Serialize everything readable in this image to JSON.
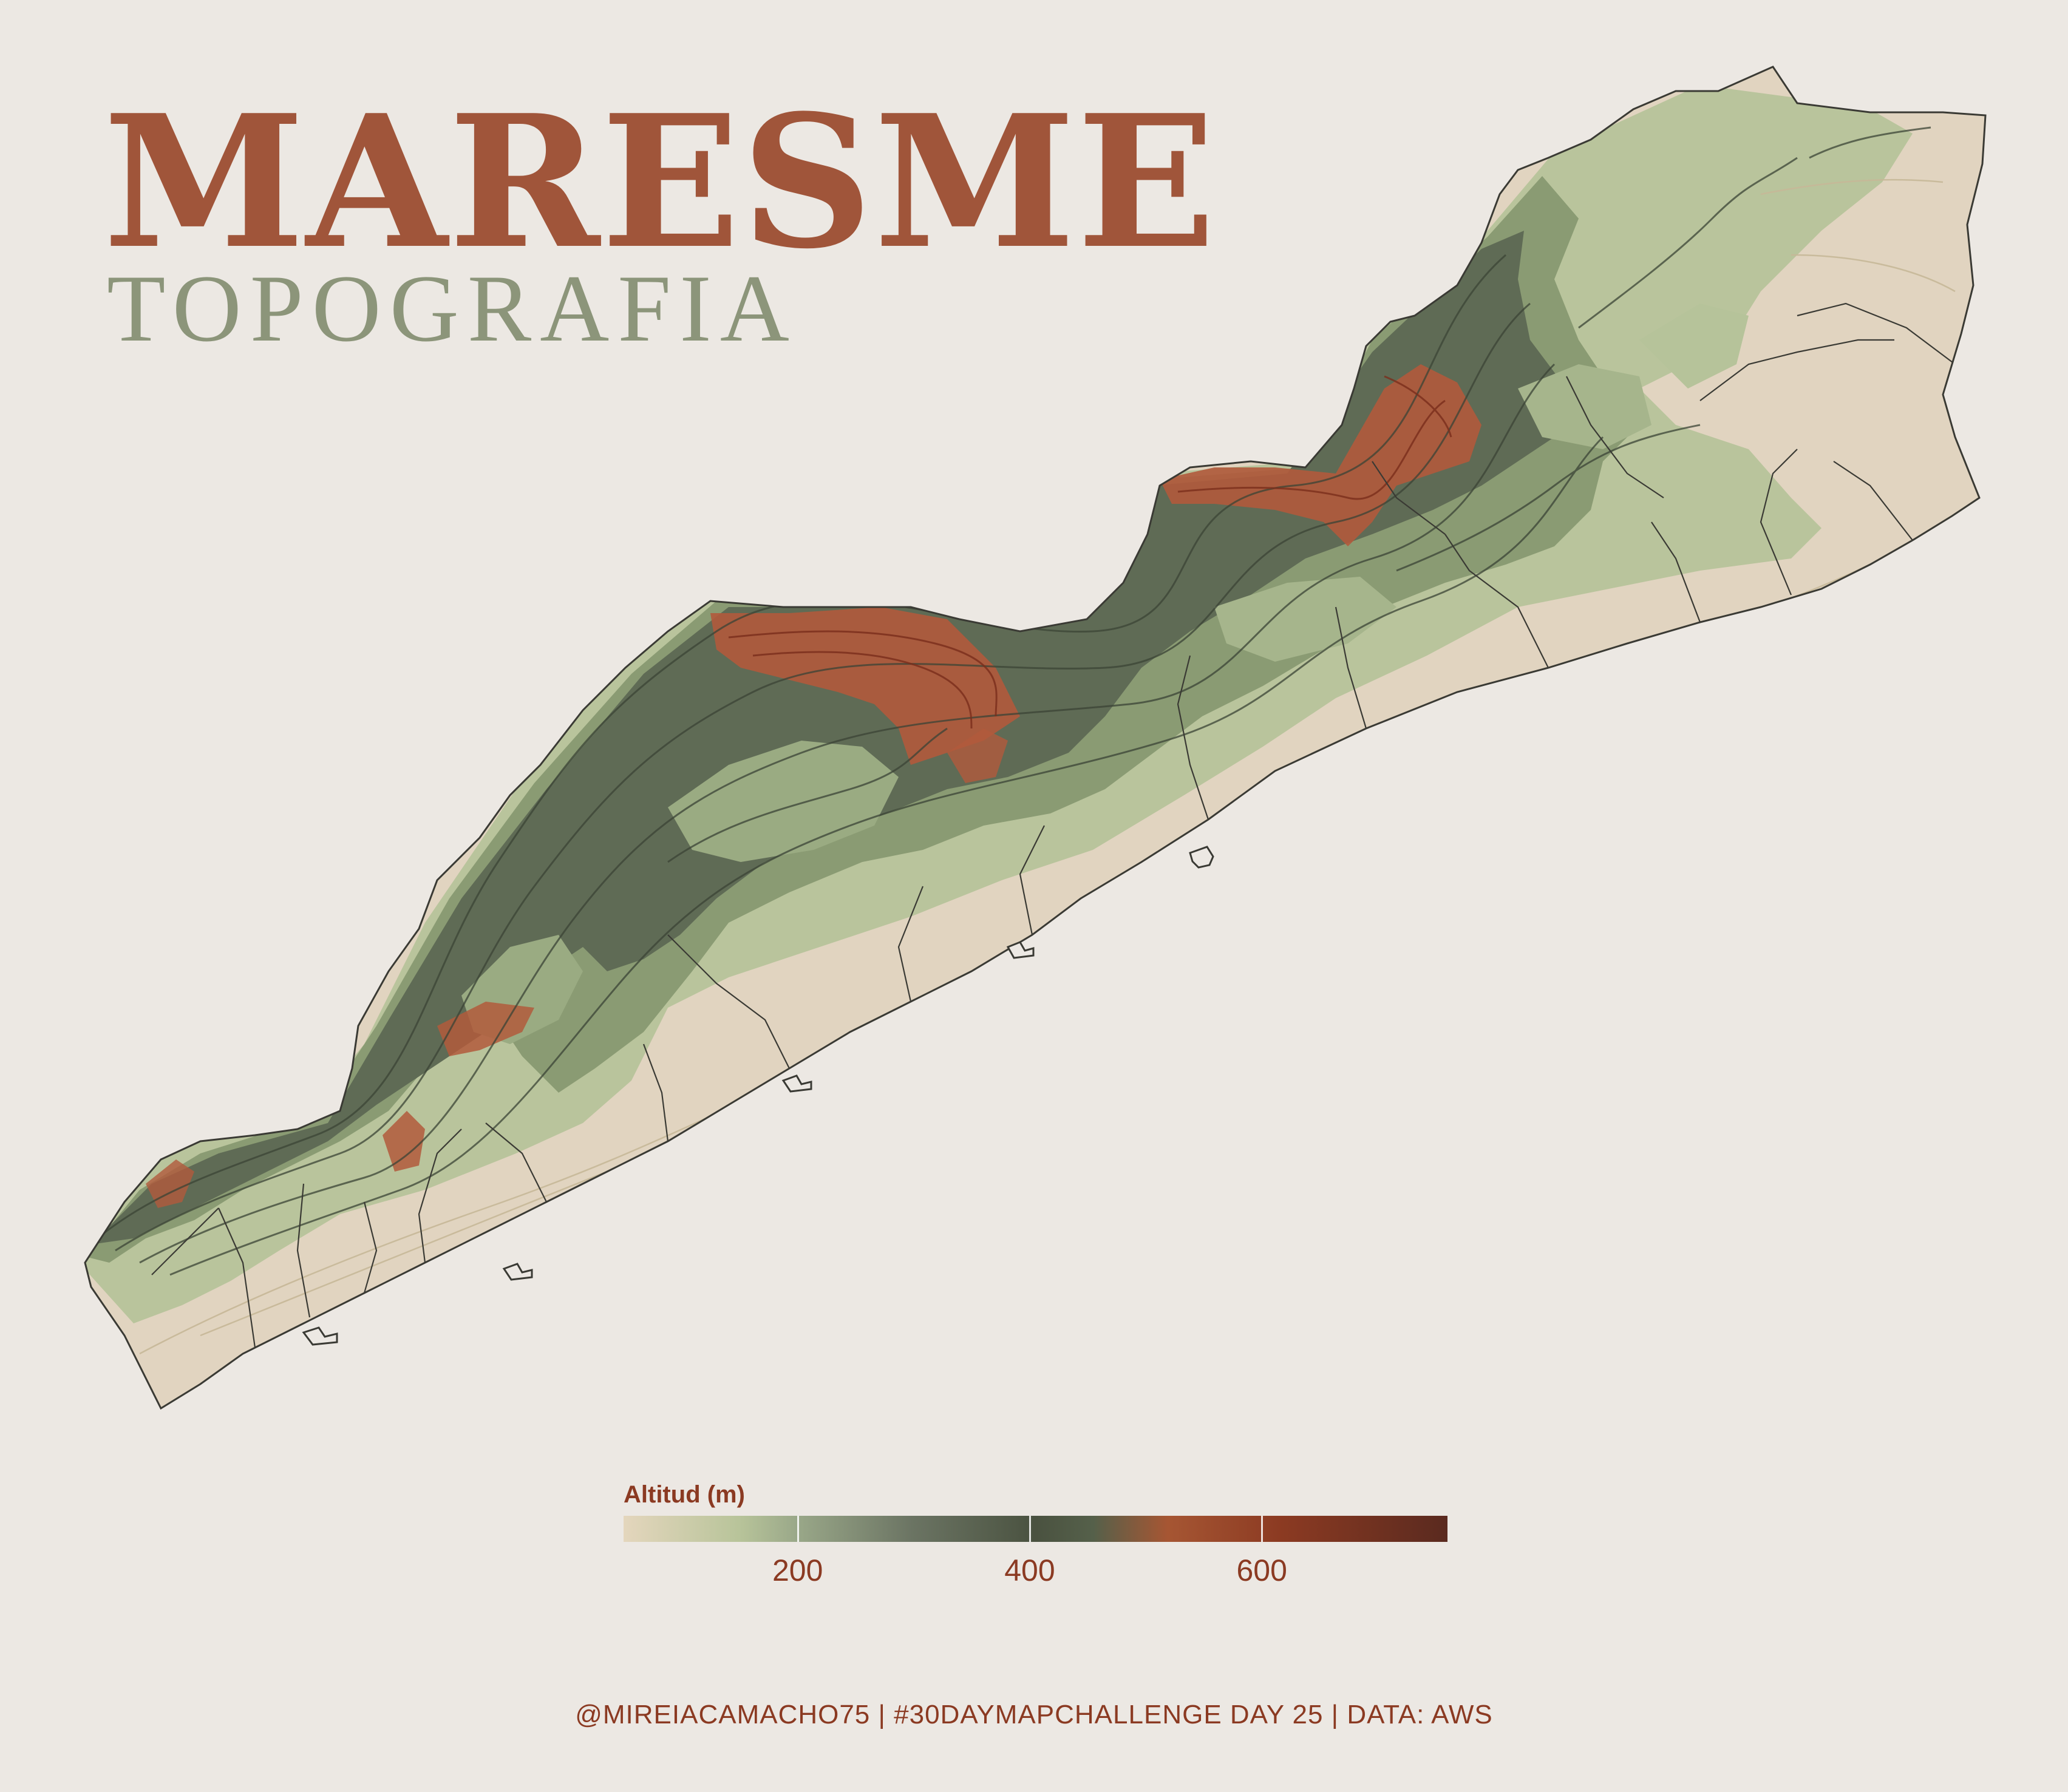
{
  "title": "MARESME",
  "subtitle": "TOPOGRAFIA",
  "legend": {
    "title": "Altitud (m)",
    "min": 50,
    "max": 760,
    "ticks": [
      {
        "value": 200,
        "label": "200"
      },
      {
        "value": 400,
        "label": "400"
      },
      {
        "value": 600,
        "label": "600"
      }
    ]
  },
  "caption": "@MIREIACAMACHO75 | #30DAYMAPCHALLENGE DAY 25 | DATA: AWS",
  "colors": {
    "background": "#ece8e3",
    "title": "#a0553a",
    "subtitle": "#8c957a",
    "text_accent": "#8b3a22",
    "coast_sand": "#e1d4c0",
    "low_green": "#b6c39a",
    "mid_green": "#8a9b73",
    "dark_green": "#4c5a45",
    "high_red": "#b15a3c",
    "outline": "#3a3a34"
  },
  "legend_gradient": [
    "#e4d6bd",
    "#b8c49a",
    "#8a957c",
    "#4a5240",
    "#4e5b44",
    "#a65633",
    "#8b3a22",
    "#5a2a1f"
  ]
}
